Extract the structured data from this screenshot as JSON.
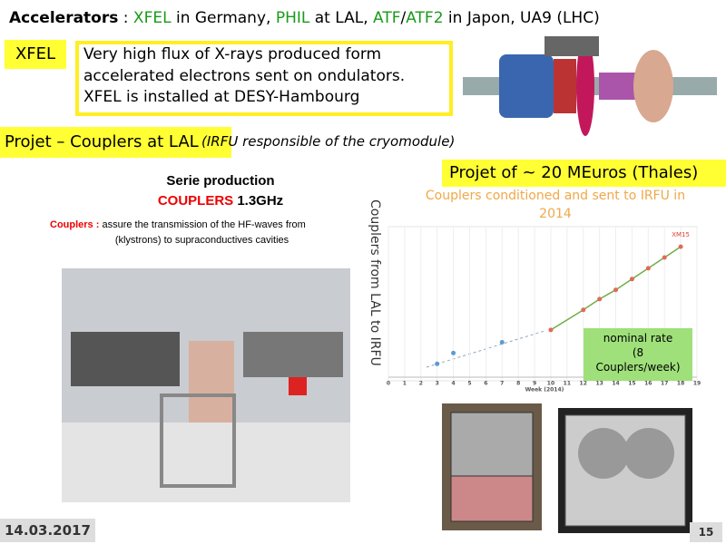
{
  "header": {
    "title_parts": [
      "Accelerators",
      " : ",
      "XFEL",
      " in Germany, ",
      "PHIL",
      " at LAL, ",
      "ATF",
      "/",
      "ATF2",
      " in Japon, UA9 (LHC)"
    ]
  },
  "xfel": {
    "label": "XFEL",
    "description": [
      "Very high flux of X-rays produced form",
      "accelerated electrons sent on ondulators.",
      "XFEL is installed at DESY-Hambourg"
    ]
  },
  "project": {
    "label": "Projet – Couplers at LAL",
    "note": "(IRFU responsible of the cryomodule)",
    "cost": "Projet of ~ 20 MEuros (Thales)"
  },
  "serie": {
    "title": "Serie production",
    "subtitle_parts": [
      "COUPLERS",
      " 1.3GHz"
    ],
    "description_parts": [
      "Couplers :",
      " assure the transmission of the HF-waves from",
      "(klystrons) to supraconductives cavities"
    ]
  },
  "chart_data": {
    "type": "scatter",
    "title": "Couplers conditioned and sent to IRFU in 2014",
    "ylabel": "Couplers from LAL to IRFU",
    "xlabel": "Week (2014)",
    "xlim": [
      0,
      19
    ],
    "xticks": [
      0,
      1,
      2,
      3,
      4,
      5,
      6,
      7,
      8,
      9,
      10,
      11,
      12,
      13,
      14,
      15,
      16,
      17,
      18,
      19
    ],
    "ylim": [
      0,
      100
    ],
    "grid": true,
    "series": [
      {
        "color": "#5b9bd5",
        "x": [
          3,
          4,
          7
        ],
        "values": [
          11,
          18,
          25
        ]
      },
      {
        "color": "#e06a5a",
        "line_color": "#70ad47",
        "x": [
          10,
          12,
          13,
          14,
          15,
          16,
          17,
          18
        ],
        "values": [
          33,
          46,
          53,
          59,
          66,
          73,
          80,
          87
        ]
      }
    ],
    "annotations": [
      "XM15",
      "nominal rate",
      "(8",
      "Couplers/week)"
    ]
  },
  "footer": {
    "date": "14.03.2017",
    "page": "15"
  }
}
